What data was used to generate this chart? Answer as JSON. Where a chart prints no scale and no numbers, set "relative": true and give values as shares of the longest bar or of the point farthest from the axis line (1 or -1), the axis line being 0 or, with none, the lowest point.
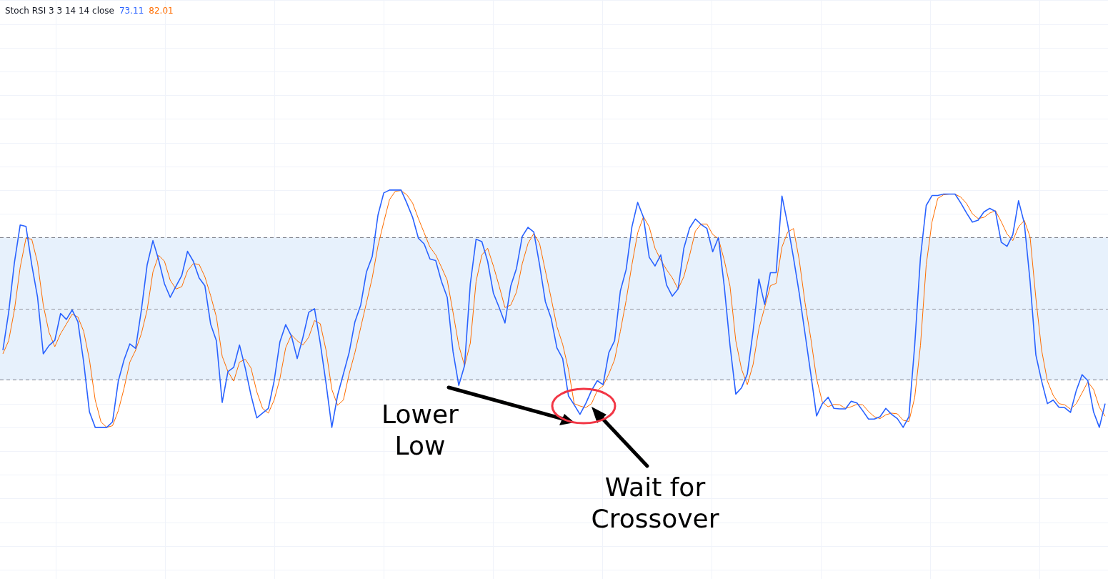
{
  "chart_data": {
    "type": "line",
    "title": "Stoch RSI 3 3 14 14 close",
    "relative": true,
    "grid": true,
    "legend": "top left",
    "categories": [
      null,
      null,
      null,
      null,
      null,
      null,
      null,
      null,
      null,
      null,
      null,
      null,
      null,
      null,
      null,
      null,
      null,
      null,
      null,
      null,
      null,
      null,
      null,
      null,
      null,
      null,
      null,
      null,
      null,
      null,
      null,
      null,
      null,
      null,
      null,
      null,
      null,
      null,
      null,
      null,
      null,
      null,
      null,
      null,
      null,
      null,
      null,
      null,
      null,
      null,
      null,
      null,
      null,
      null,
      null,
      null,
      null,
      null,
      null,
      null,
      null,
      null,
      null,
      null,
      null,
      null,
      null,
      null,
      null,
      null,
      null,
      null,
      null,
      null,
      null,
      null,
      null,
      null,
      null,
      null,
      null,
      null,
      null,
      null,
      null,
      null,
      null,
      null,
      null,
      null,
      null,
      null,
      null,
      null,
      null,
      null,
      null,
      null,
      null,
      null,
      null,
      null,
      null,
      null,
      null,
      null,
      null,
      null,
      null,
      null,
      null,
      null,
      null,
      null,
      null,
      null,
      null,
      null,
      null,
      null,
      null,
      null,
      null,
      null,
      null,
      null,
      null,
      null,
      null,
      null,
      null,
      null,
      null,
      null,
      null,
      null,
      null,
      null,
      null,
      null,
      null,
      null,
      null,
      null,
      null,
      null,
      null,
      null,
      null,
      null,
      null,
      null,
      null,
      null,
      null,
      null,
      null,
      null,
      null,
      null,
      null,
      null,
      null,
      null,
      null,
      null,
      null,
      null,
      null,
      null,
      null,
      null,
      null,
      null,
      null,
      null,
      null,
      null,
      null,
      null,
      null,
      null,
      null,
      null,
      null,
      null,
      null,
      null,
      null,
      null,
      null,
      null
    ],
    "series": [
      {
        "name": "73.11",
        "color": "#2962ff",
        "values": [
          0.325,
          0.485,
          0.695,
          0.853,
          0.847,
          0.685,
          0.55,
          0.31,
          0.345,
          0.367,
          0.48,
          0.455,
          0.495,
          0.445,
          0.275,
          0.065,
          0,
          0,
          0,
          0.023,
          0.195,
          0.285,
          0.352,
          0.333,
          0.495,
          0.685,
          0.787,
          0.705,
          0.605,
          0.548,
          0.595,
          0.64,
          0.742,
          0.7,
          0.63,
          0.597,
          0.435,
          0.365,
          0.105,
          0.235,
          0.253,
          0.347,
          0.25,
          0.135,
          0.04,
          0.06,
          0.08,
          0.195,
          0.36,
          0.433,
          0.385,
          0.29,
          0.38,
          0.485,
          0.5,
          0.355,
          0.185,
          0,
          0.135,
          0.225,
          0.315,
          0.445,
          0.515,
          0.655,
          0.72,
          0.895,
          0.988,
          1,
          1,
          1,
          0.945,
          0.885,
          0.797,
          0.773,
          0.71,
          0.703,
          0.615,
          0.548,
          0.32,
          0.177,
          0.26,
          0.605,
          0.793,
          0.783,
          0.7,
          0.565,
          0.505,
          0.44,
          0.595,
          0.67,
          0.805,
          0.843,
          0.823,
          0.685,
          0.53,
          0.46,
          0.335,
          0.29,
          0.133,
          0.095,
          0.055,
          0.1,
          0.155,
          0.197,
          0.18,
          0.315,
          0.365,
          0.575,
          0.665,
          0.845,
          0.948,
          0.885,
          0.717,
          0.68,
          0.727,
          0.6,
          0.553,
          0.583,
          0.755,
          0.84,
          0.878,
          0.855,
          0.838,
          0.74,
          0.8,
          0.595,
          0.345,
          0.14,
          0.167,
          0.225,
          0.405,
          0.625,
          0.518,
          0.652,
          0.652,
          0.975,
          0.855,
          0.715,
          0.565,
          0.395,
          0.225,
          0.048,
          0.1,
          0.127,
          0.08,
          0.078,
          0.078,
          0.11,
          0.103,
          0.07,
          0.035,
          0.035,
          0.045,
          0.08,
          0.055,
          0.037,
          0,
          0.045,
          0.345,
          0.715,
          0.935,
          0.977,
          0.977,
          0.983,
          0.983,
          0.983,
          0.945,
          0.903,
          0.865,
          0.873,
          0.908,
          0.923,
          0.91,
          0.78,
          0.763,
          0.812,
          0.955,
          0.86,
          0.615,
          0.305,
          0.195,
          0.1,
          0.115,
          0.085,
          0.083,
          0.063,
          0.155,
          0.222,
          0.197,
          0.065,
          0,
          0.1
        ]
      },
      {
        "name": "82.01",
        "color": "#ff6d00",
        "values": [
          0.31,
          0.365,
          0.495,
          0.675,
          0.797,
          0.793,
          0.695,
          0.515,
          0.4,
          0.34,
          0.395,
          0.435,
          0.477,
          0.465,
          0.405,
          0.285,
          0.115,
          0.023,
          0,
          0.007,
          0.07,
          0.165,
          0.275,
          0.325,
          0.395,
          0.495,
          0.655,
          0.725,
          0.7,
          0.62,
          0.583,
          0.593,
          0.66,
          0.69,
          0.687,
          0.635,
          0.555,
          0.465,
          0.3,
          0.235,
          0.195,
          0.275,
          0.287,
          0.25,
          0.15,
          0.08,
          0.06,
          0.115,
          0.205,
          0.335,
          0.39,
          0.365,
          0.347,
          0.38,
          0.45,
          0.437,
          0.325,
          0.16,
          0.093,
          0.115,
          0.225,
          0.315,
          0.42,
          0.525,
          0.63,
          0.765,
          0.865,
          0.96,
          0.995,
          0.998,
          0.98,
          0.945,
          0.88,
          0.82,
          0.76,
          0.727,
          0.675,
          0.62,
          0.485,
          0.345,
          0.26,
          0.355,
          0.615,
          0.727,
          0.755,
          0.68,
          0.595,
          0.505,
          0.515,
          0.57,
          0.69,
          0.775,
          0.817,
          0.775,
          0.66,
          0.545,
          0.425,
          0.35,
          0.245,
          0.1,
          0.09,
          0.083,
          0.1,
          0.155,
          0.175,
          0.225,
          0.285,
          0.405,
          0.535,
          0.685,
          0.82,
          0.888,
          0.845,
          0.755,
          0.705,
          0.665,
          0.63,
          0.583,
          0.635,
          0.725,
          0.827,
          0.857,
          0.857,
          0.813,
          0.795,
          0.705,
          0.595,
          0.365,
          0.245,
          0.18,
          0.265,
          0.415,
          0.505,
          0.597,
          0.607,
          0.76,
          0.823,
          0.838,
          0.705,
          0.525,
          0.375,
          0.205,
          0.107,
          0.087,
          0.097,
          0.095,
          0.08,
          0.087,
          0.097,
          0.095,
          0.067,
          0.045,
          0.037,
          0.053,
          0.06,
          0.057,
          0.03,
          0.025,
          0.125,
          0.345,
          0.685,
          0.865,
          0.965,
          0.98,
          0.983,
          0.983,
          0.97,
          0.943,
          0.9,
          0.88,
          0.885,
          0.903,
          0.913,
          0.867,
          0.815,
          0.787,
          0.845,
          0.872,
          0.802,
          0.545,
          0.325,
          0.195,
          0.135,
          0.1,
          0.095,
          0.077,
          0.1,
          0.145,
          0.192,
          0.16,
          0.085,
          0.047
        ]
      }
    ],
    "bands": [
      {
        "axis": "y",
        "from": 0.2,
        "to": 0.8,
        "color": "#e7f1fc"
      }
    ],
    "ref_lines": [
      {
        "axis": "y",
        "value": 0.8,
        "color": "#787b86",
        "line_style": "dashed"
      },
      {
        "axis": "y",
        "value": 0.5,
        "color": "#9598a1",
        "line_style": "dashed"
      },
      {
        "axis": "y",
        "value": 0.2,
        "color": "#787b86",
        "line_style": "dashed"
      }
    ],
    "annotations": [
      "Lower Low",
      "Wait for Crossover"
    ]
  }
}
